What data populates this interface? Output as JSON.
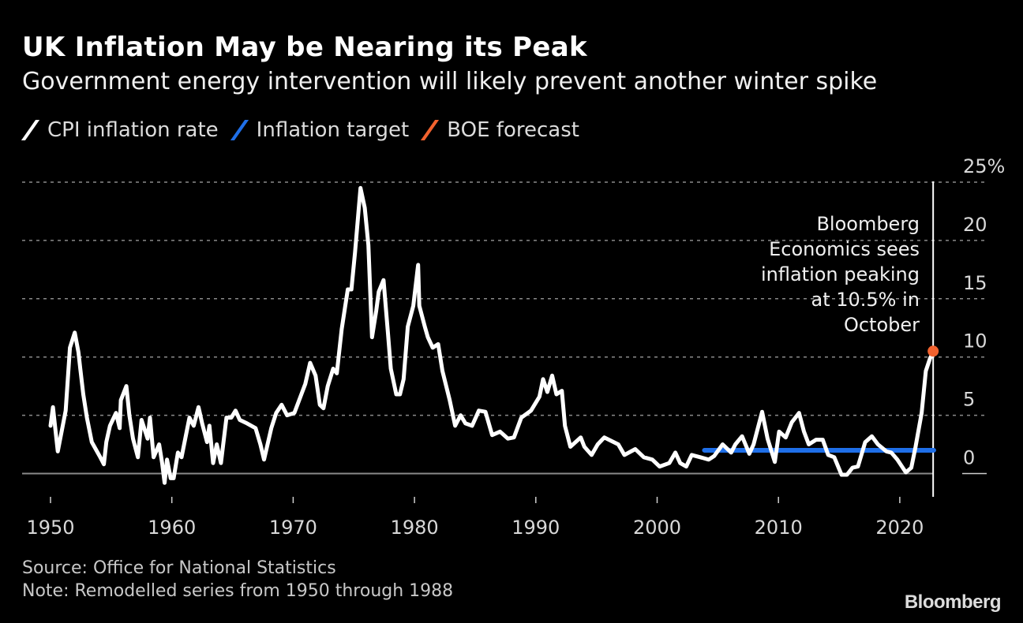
{
  "chart_data": {
    "type": "line",
    "title": "UK Inflation May be Nearing its Peak",
    "subtitle": "Government energy intervention will likely prevent another winter spike",
    "legend": {
      "placement": "top-left",
      "items": [
        {
          "label": "CPI inflation rate",
          "color": "#ffffff"
        },
        {
          "label": "Inflation target",
          "color": "#1f6fe8"
        },
        {
          "label": "BOE forecast",
          "color": "#f2622e"
        }
      ]
    },
    "xlim": [
      1947.5,
      2025
    ],
    "ylim": [
      -2,
      25
    ],
    "x_ticks": [
      "1950",
      "1960",
      "1970",
      "1980",
      "1990",
      "2000",
      "2010",
      "2020"
    ],
    "y_ticks": [
      {
        "value": 25,
        "label": "25%"
      },
      {
        "value": 20,
        "label": "20"
      },
      {
        "value": 15,
        "label": "15"
      },
      {
        "value": 10,
        "label": "10"
      },
      {
        "value": 5,
        "label": "5"
      },
      {
        "value": 0,
        "label": "0"
      }
    ],
    "grid": "horizontal dashed",
    "series": [
      {
        "name": "CPI inflation rate",
        "color": "#ffffff",
        "points": [
          [
            1950.0,
            4.1
          ],
          [
            1950.2,
            5.7
          ],
          [
            1950.6,
            1.9
          ],
          [
            1951.25,
            5.4
          ],
          [
            1951.6,
            10.8
          ],
          [
            1952.0,
            12.1
          ],
          [
            1952.3,
            10.4
          ],
          [
            1952.45,
            9.0
          ],
          [
            1952.7,
            6.8
          ],
          [
            1953.0,
            4.8
          ],
          [
            1953.4,
            2.7
          ],
          [
            1954.1,
            1.4
          ],
          [
            1954.4,
            0.8
          ],
          [
            1954.6,
            2.7
          ],
          [
            1954.9,
            4.1
          ],
          [
            1955.4,
            5.2
          ],
          [
            1955.7,
            3.9
          ],
          [
            1955.8,
            6.3
          ],
          [
            1956.25,
            7.5
          ],
          [
            1956.5,
            5.0
          ],
          [
            1956.8,
            3.0
          ],
          [
            1957.2,
            1.4
          ],
          [
            1957.5,
            4.6
          ],
          [
            1958.0,
            3.0
          ],
          [
            1958.2,
            4.8
          ],
          [
            1958.5,
            1.4
          ],
          [
            1958.95,
            2.5
          ],
          [
            1959.2,
            0.9
          ],
          [
            1959.4,
            -0.8
          ],
          [
            1959.6,
            1.2
          ],
          [
            1959.9,
            -0.4
          ],
          [
            1960.15,
            -0.4
          ],
          [
            1960.5,
            1.8
          ],
          [
            1960.8,
            1.4
          ],
          [
            1961.45,
            4.8
          ],
          [
            1961.8,
            4.1
          ],
          [
            1962.2,
            5.7
          ],
          [
            1962.5,
            4.3
          ],
          [
            1962.9,
            2.7
          ],
          [
            1963.1,
            4.1
          ],
          [
            1963.4,
            0.9
          ],
          [
            1963.7,
            2.5
          ],
          [
            1964.05,
            0.9
          ],
          [
            1964.5,
            4.8
          ],
          [
            1964.9,
            4.8
          ],
          [
            1965.25,
            5.4
          ],
          [
            1965.6,
            4.6
          ],
          [
            1966.2,
            4.3
          ],
          [
            1966.9,
            3.9
          ],
          [
            1967.3,
            2.5
          ],
          [
            1967.6,
            1.2
          ],
          [
            1968.2,
            3.9
          ],
          [
            1968.6,
            5.2
          ],
          [
            1969.05,
            5.9
          ],
          [
            1969.5,
            5.0
          ],
          [
            1970.1,
            5.2
          ],
          [
            1971.0,
            7.7
          ],
          [
            1971.4,
            9.5
          ],
          [
            1971.85,
            8.4
          ],
          [
            1972.2,
            5.9
          ],
          [
            1972.5,
            5.6
          ],
          [
            1972.85,
            7.5
          ],
          [
            1973.3,
            9.0
          ],
          [
            1973.6,
            8.6
          ],
          [
            1974.0,
            12.4
          ],
          [
            1974.5,
            15.8
          ],
          [
            1974.8,
            15.8
          ],
          [
            1975.1,
            19.0
          ],
          [
            1975.55,
            24.5
          ],
          [
            1975.9,
            22.8
          ],
          [
            1976.2,
            19.6
          ],
          [
            1976.5,
            11.7
          ],
          [
            1976.85,
            14.0
          ],
          [
            1977.05,
            15.6
          ],
          [
            1977.45,
            16.6
          ],
          [
            1977.8,
            12.2
          ],
          [
            1978.05,
            9.0
          ],
          [
            1978.5,
            6.8
          ],
          [
            1978.8,
            6.8
          ],
          [
            1979.1,
            8.1
          ],
          [
            1979.45,
            12.6
          ],
          [
            1979.9,
            14.4
          ],
          [
            1980.3,
            17.9
          ],
          [
            1980.4,
            14.4
          ],
          [
            1980.85,
            12.6
          ],
          [
            1981.1,
            11.7
          ],
          [
            1981.5,
            10.8
          ],
          [
            1981.95,
            11.1
          ],
          [
            1982.3,
            8.8
          ],
          [
            1982.9,
            6.3
          ],
          [
            1983.35,
            4.1
          ],
          [
            1983.8,
            5.0
          ],
          [
            1984.2,
            4.3
          ],
          [
            1984.75,
            4.1
          ],
          [
            1985.3,
            5.4
          ],
          [
            1985.85,
            5.3
          ],
          [
            1986.4,
            3.3
          ],
          [
            1987.05,
            3.6
          ],
          [
            1987.7,
            3.0
          ],
          [
            1988.2,
            3.1
          ],
          [
            1988.8,
            4.8
          ],
          [
            1989.6,
            5.4
          ],
          [
            1990.3,
            6.6
          ],
          [
            1990.6,
            8.1
          ],
          [
            1990.95,
            7.0
          ],
          [
            1991.35,
            8.4
          ],
          [
            1991.7,
            6.8
          ],
          [
            1992.15,
            7.1
          ],
          [
            1992.4,
            4.1
          ],
          [
            1992.85,
            2.3
          ],
          [
            1993.7,
            3.1
          ],
          [
            1994.0,
            2.3
          ],
          [
            1994.6,
            1.6
          ],
          [
            1995.1,
            2.5
          ],
          [
            1995.65,
            3.1
          ],
          [
            1996.8,
            2.5
          ],
          [
            1997.3,
            1.6
          ],
          [
            1998.2,
            2.1
          ],
          [
            1998.9,
            1.4
          ],
          [
            1999.6,
            1.2
          ],
          [
            2000.2,
            0.6
          ],
          [
            2001.0,
            0.9
          ],
          [
            2001.5,
            1.8
          ],
          [
            2001.9,
            0.9
          ],
          [
            2002.4,
            0.6
          ],
          [
            2002.85,
            1.6
          ],
          [
            2003.55,
            1.4
          ],
          [
            2004.25,
            1.2
          ],
          [
            2004.7,
            1.5
          ],
          [
            2005.4,
            2.5
          ],
          [
            2006.1,
            1.8
          ],
          [
            2006.45,
            2.5
          ],
          [
            2007.0,
            3.2
          ],
          [
            2007.6,
            1.7
          ],
          [
            2007.95,
            2.5
          ],
          [
            2008.65,
            5.3
          ],
          [
            2009.1,
            3.0
          ],
          [
            2009.7,
            1.0
          ],
          [
            2010.05,
            3.6
          ],
          [
            2010.6,
            3.1
          ],
          [
            2011.1,
            4.4
          ],
          [
            2011.7,
            5.2
          ],
          [
            2012.1,
            3.6
          ],
          [
            2012.5,
            2.5
          ],
          [
            2013.1,
            2.9
          ],
          [
            2013.65,
            2.9
          ],
          [
            2014.1,
            1.6
          ],
          [
            2014.6,
            1.4
          ],
          [
            2015.2,
            -0.1
          ],
          [
            2015.65,
            -0.1
          ],
          [
            2016.1,
            0.5
          ],
          [
            2016.55,
            0.6
          ],
          [
            2017.15,
            2.7
          ],
          [
            2017.7,
            3.2
          ],
          [
            2018.2,
            2.5
          ],
          [
            2018.9,
            1.9
          ],
          [
            2019.3,
            1.8
          ],
          [
            2019.8,
            1.2
          ],
          [
            2020.5,
            0.1
          ],
          [
            2020.95,
            0.5
          ],
          [
            2021.3,
            2.3
          ],
          [
            2021.8,
            5.2
          ],
          [
            2022.15,
            8.8
          ],
          [
            2022.5,
            9.9
          ],
          [
            2022.6,
            10.1
          ]
        ]
      },
      {
        "name": "Inflation target",
        "color": "#1f6fe8",
        "points": [
          [
            2003.9,
            2
          ],
          [
            2022.8,
            2
          ]
        ]
      },
      {
        "name": "BOE forecast",
        "color": "#f2622e",
        "points": [
          [
            2022.75,
            10.5
          ]
        ]
      }
    ],
    "annotation": {
      "lines": [
        "Bloomberg",
        "Economics sees",
        "inflation peaking",
        "at 10.5% in",
        "October"
      ]
    }
  },
  "source": "Source: Office for National Statistics",
  "note": "Note: Remodelled series from 1950 through 1988",
  "logo": "Bloomberg"
}
